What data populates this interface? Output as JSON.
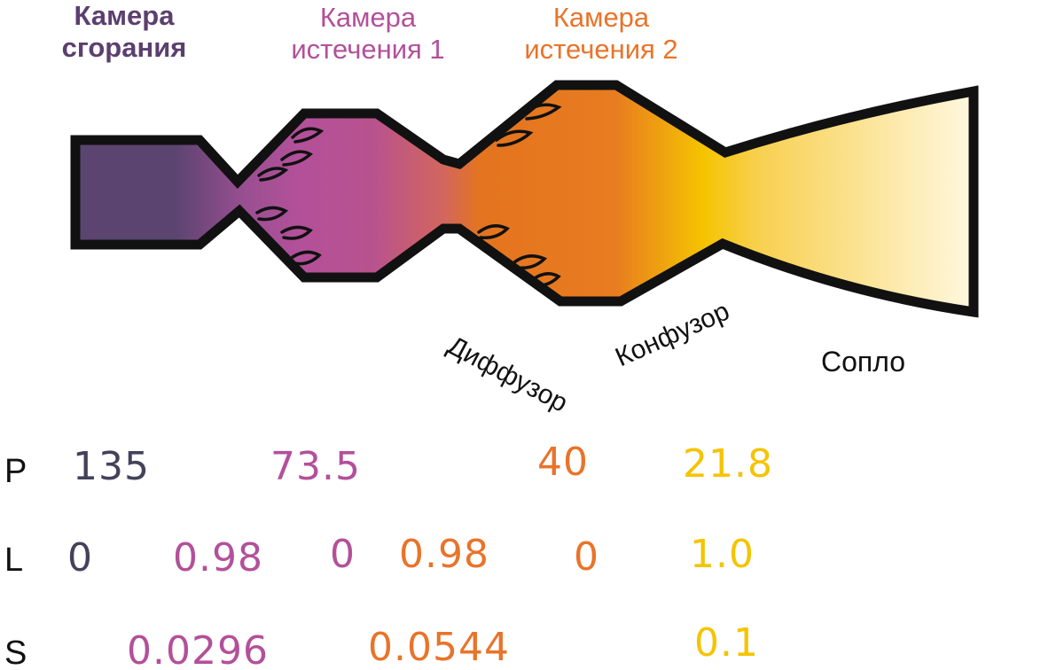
{
  "titles": {
    "combustion": [
      "Камера",
      "сгорания"
    ],
    "outflow1": [
      "Камера",
      "истечения 1"
    ],
    "outflow2": [
      "Камера",
      "истечения 2"
    ]
  },
  "labels": {
    "diffuser": "Диффузор",
    "confuser": "Конфузор",
    "nozzle": "Сопло"
  },
  "rows": {
    "p": {
      "label": "P",
      "values": [
        "135",
        "73.5",
        "40",
        "21.8"
      ]
    },
    "l": {
      "label": "L",
      "values": [
        "0",
        "0.98",
        "0",
        "0.98",
        "0",
        "1.0"
      ]
    },
    "s": {
      "label": "S",
      "values": [
        "0.0296",
        "0.0544",
        "0.1"
      ]
    }
  },
  "colors": {
    "combustion": "#5b3f6e",
    "outflow1": "#b3509a",
    "outflow2_orange": "#e8742a",
    "yellow": "#f5c400",
    "pale_yellow": "#fff3c4",
    "dark_gray": "#44425a",
    "outline": "#111111"
  }
}
